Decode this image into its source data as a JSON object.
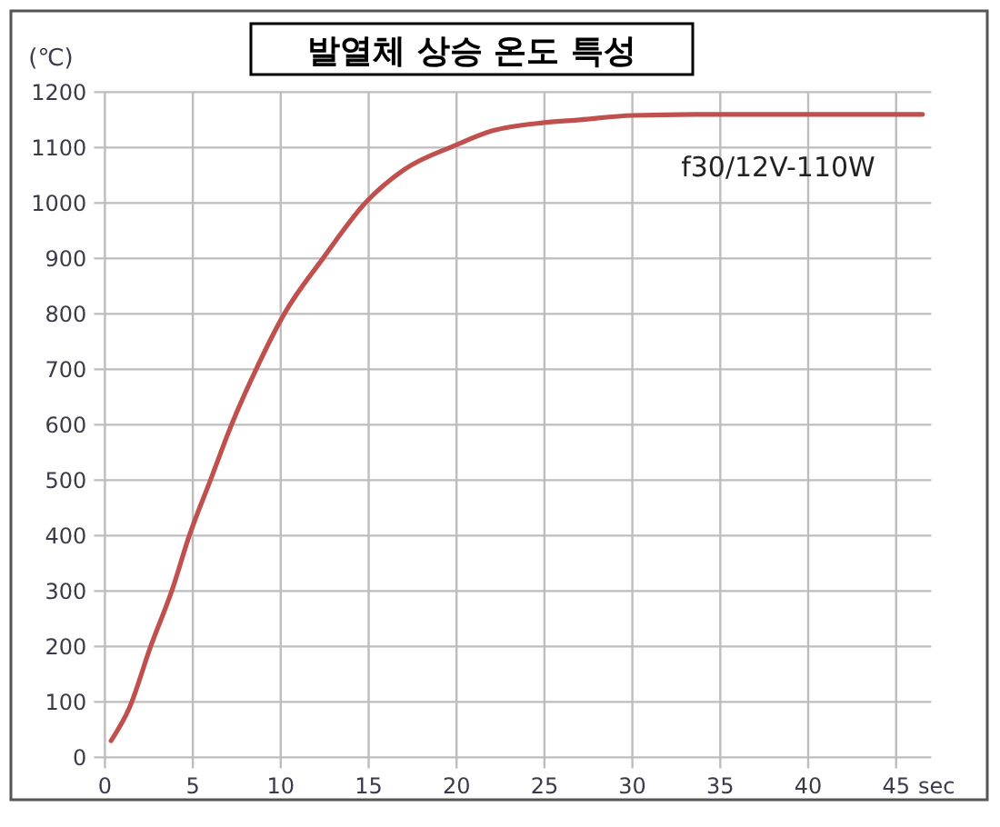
{
  "chart_data": {
    "type": "line",
    "title": "발열체 상승 온도 특성",
    "xlabel": "sec",
    "ylabel": "(℃)",
    "x": [
      0.35,
      1.4,
      2.6,
      3.8,
      4.8,
      6.0,
      7.2,
      8.6,
      10.2,
      12.4,
      14.8,
      17,
      20,
      22,
      25,
      27,
      30,
      35,
      46.5
    ],
    "series": [
      {
        "name": "f30/12V-110W",
        "color": "#c0504d",
        "values": [
          30,
          90,
          200,
          300,
          400,
          500,
          600,
          700,
          800,
          900,
          1000,
          1060,
          1105,
          1130,
          1145,
          1150,
          1158,
          1160,
          1160
        ]
      }
    ],
    "xlim": [
      0,
      47
    ],
    "xticks": [
      0,
      5,
      10,
      15,
      20,
      25,
      30,
      35,
      40,
      45
    ],
    "ylim": [
      0,
      1200
    ],
    "yticks": [
      0,
      100,
      200,
      300,
      400,
      500,
      600,
      700,
      800,
      900,
      1000,
      1100,
      1200
    ],
    "grid": true,
    "marker": "none",
    "line_style": "solid"
  }
}
